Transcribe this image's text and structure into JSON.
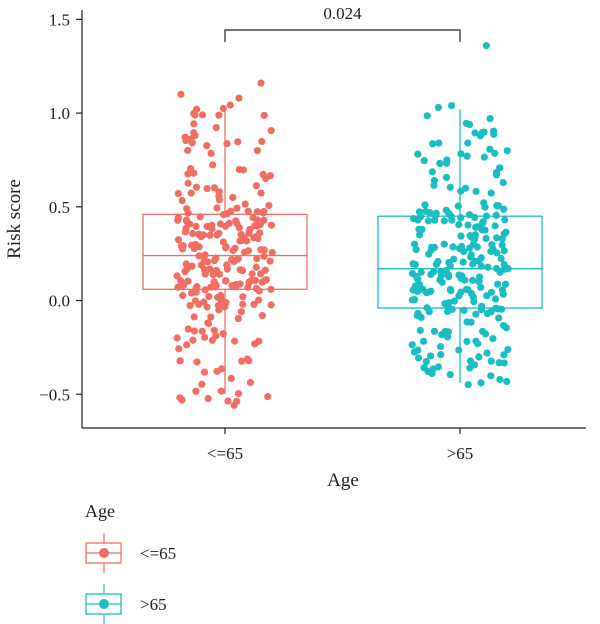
{
  "chart_data": {
    "type": "box",
    "xlabel": "Age",
    "ylabel": "Risk score",
    "categories": [
      "<=65",
      ">65"
    ],
    "ylim": [
      -0.68,
      1.55
    ],
    "yticks": [
      -0.5,
      0.0,
      0.5,
      1.0,
      1.5
    ],
    "ytick_labels": [
      "−0.5",
      "0.0",
      "0.5",
      "1.0",
      "1.5"
    ],
    "series": [
      {
        "name": "<=65",
        "color": "#F06E64",
        "box": {
          "q1": 0.06,
          "median": 0.24,
          "q3": 0.46,
          "whisker_low": -0.5,
          "whisker_high": 1.01
        },
        "outliers": [
          1.1,
          1.08,
          1.16
        ],
        "n_points": 250,
        "seed": 7,
        "range": [
          -0.56,
          1.05
        ]
      },
      {
        "name": ">65",
        "color": "#1ABDC2",
        "box": {
          "q1": -0.04,
          "median": 0.17,
          "q3": 0.45,
          "whisker_low": -0.44,
          "whisker_high": 1.02
        },
        "outliers": [
          1.36,
          1.04,
          1.03
        ],
        "n_points": 250,
        "seed": 13,
        "range": [
          -0.45,
          1.0
        ]
      }
    ],
    "comparison": {
      "label": "0.024",
      "between": [
        "<=65",
        ">65"
      ]
    },
    "legend": {
      "title": "Age",
      "items": [
        "<=65",
        ">65"
      ],
      "placement": "bottom-left"
    },
    "grid": false
  }
}
